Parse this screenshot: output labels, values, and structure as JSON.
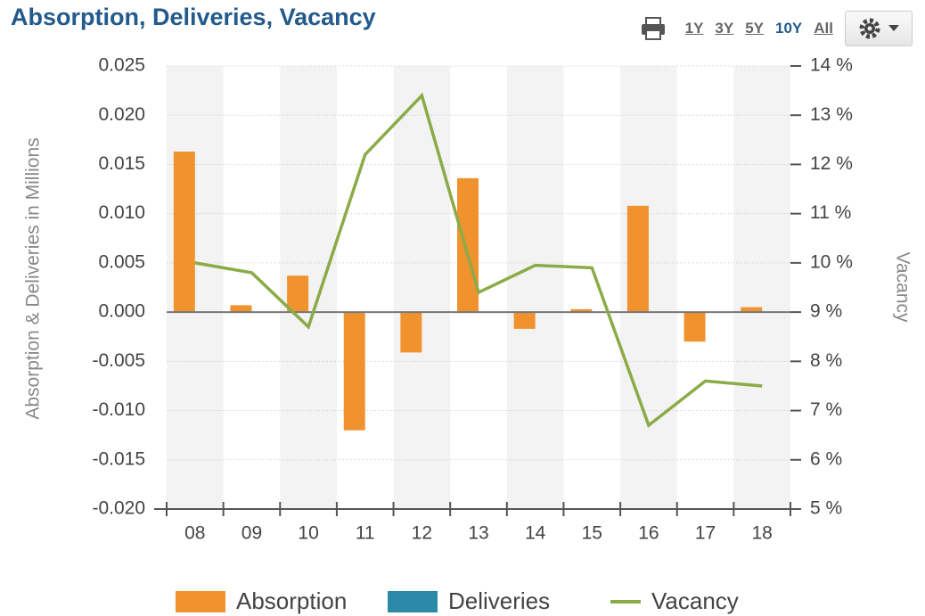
{
  "header": {
    "title": "Absorption, Deliveries, Vacancy",
    "range_buttons": [
      "1Y",
      "3Y",
      "5Y",
      "10Y",
      "All"
    ],
    "active_button": "10Y"
  },
  "chart_data": {
    "type": "bar",
    "ylabel": "Absorption & Deliveries in Millions",
    "y2label": "Vacancy",
    "categories": [
      "08",
      "09",
      "10",
      "11",
      "12",
      "13",
      "14",
      "15",
      "16",
      "17",
      "18"
    ],
    "series": [
      {
        "name": "Absorption",
        "type": "bar",
        "color": "#f0922e",
        "values": [
          0.0163,
          0.0007,
          0.0037,
          -0.012,
          -0.0041,
          0.0136,
          -0.0017,
          0.0003,
          0.0108,
          -0.003,
          0.0005
        ]
      },
      {
        "name": "Deliveries",
        "type": "bar",
        "color": "#2a8aa8",
        "values": [
          0,
          0,
          0,
          0,
          0,
          0,
          0,
          0,
          0,
          0,
          0
        ]
      },
      {
        "name": "Vacancy",
        "type": "line",
        "axis": "y2",
        "color": "#8aab47",
        "values": [
          10.0,
          9.8,
          8.7,
          12.2,
          13.4,
          9.4,
          9.95,
          9.9,
          6.7,
          7.6,
          7.5
        ]
      }
    ],
    "ylim": [
      -0.02,
      0.025
    ],
    "yticks": [
      {
        "value": -0.02,
        "label": "-0.020"
      },
      -0.015,
      {
        "value": -0.01,
        "label": "-0.010"
      },
      -0.005,
      {
        "value": 0,
        "label": "0.000"
      },
      0.005,
      {
        "value": 0.01,
        "label": "0.010"
      },
      0.015,
      {
        "value": 0.02,
        "label": "0.020"
      },
      0.025
    ],
    "y2lim": [
      5,
      14
    ],
    "y2ticks": [
      {
        "value": 5,
        "label": "5 %"
      },
      {
        "value": 6,
        "label": "6 %"
      },
      {
        "value": 7,
        "label": "7 %"
      },
      {
        "value": 8,
        "label": "8 %"
      },
      {
        "value": 9,
        "label": "9 %"
      },
      {
        "value": 10,
        "label": "10 %"
      },
      {
        "value": 11,
        "label": "11 %"
      },
      {
        "value": 12,
        "label": "12 %"
      },
      {
        "value": 13,
        "label": "13 %"
      },
      {
        "value": 14,
        "label": "14 %"
      }
    ],
    "grid": true,
    "legend": "bottom"
  }
}
